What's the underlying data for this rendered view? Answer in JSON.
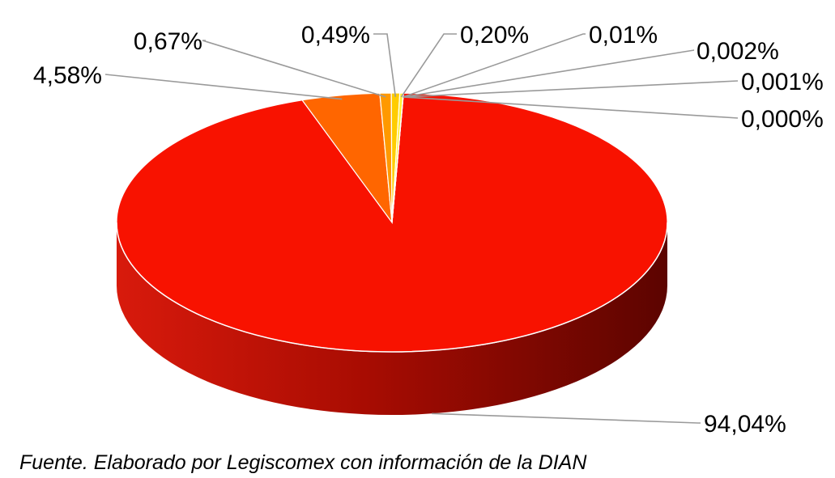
{
  "chart_data": {
    "type": "pie",
    "style": "3d",
    "values": [
      94.04,
      4.58,
      0.67,
      0.49,
      0.2,
      0.01,
      0.002,
      0.001,
      0.0
    ],
    "labels": [
      "94,04%",
      "4,58%",
      "0,67%",
      "0,49%",
      "0,20%",
      "0,01%",
      "0,002%",
      "0,001%",
      "0,000%"
    ],
    "colors": [
      "#f81200",
      "#ff6600",
      "#ff9900",
      "#ffcc00",
      "#ffee33",
      "#ffff66",
      "#ffff99",
      "#ffffcc",
      "#ffffee"
    ],
    "legend": "none"
  },
  "source_note": "Fuente. Elaborado por Legiscomex con información de la DIAN"
}
